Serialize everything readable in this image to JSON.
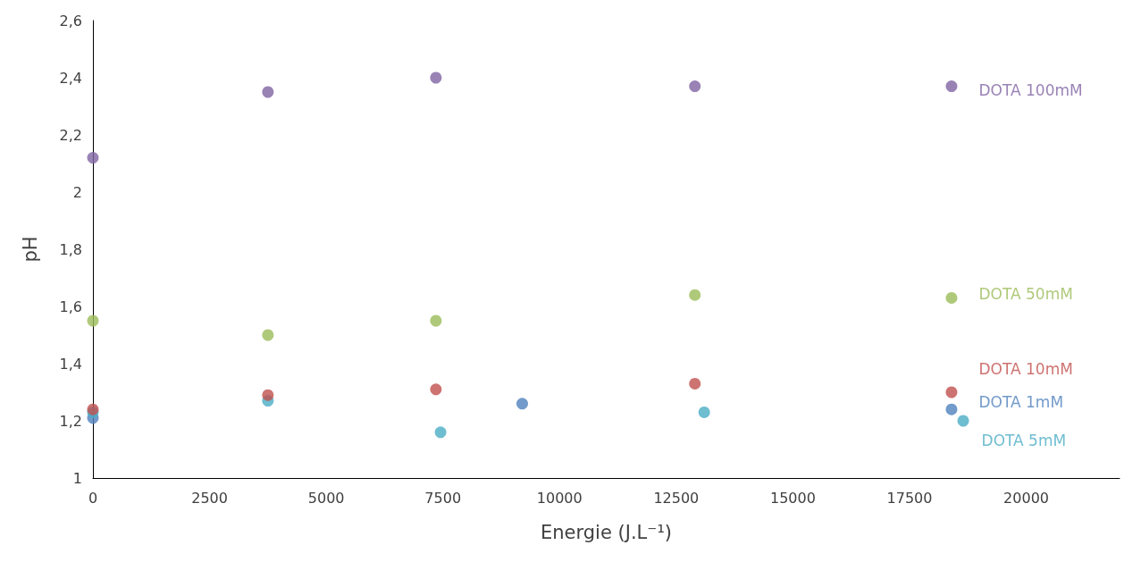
{
  "chart_data": {
    "type": "scatter",
    "xlabel": "Energie (J.L⁻¹)",
    "ylabel": "pH",
    "xlim": [
      0,
      22000
    ],
    "xticks": [
      0,
      2500,
      5000,
      7500,
      10000,
      12500,
      15000,
      17500,
      20000
    ],
    "ylim": [
      1,
      2.6
    ],
    "yticks": [
      1,
      {
        "value": 1.2,
        "label": "1,2"
      },
      {
        "value": 1.4,
        "label": "1,4"
      },
      {
        "value": 1.6,
        "label": "1,6"
      },
      {
        "value": 1.8,
        "label": "1,8"
      },
      2,
      {
        "value": 2.2,
        "label": "2,2"
      },
      {
        "value": 2.4,
        "label": "2,4"
      },
      {
        "value": 2.6,
        "label": "2,6"
      }
    ],
    "grid": false,
    "legend": false,
    "marker": "circle",
    "series": [
      {
        "name": "DOTA 100mM",
        "color": "#8064a2",
        "x": [
          0,
          3750,
          7350,
          12900,
          18400
        ],
        "values": [
          2.12,
          2.35,
          2.4,
          2.37,
          2.37
        ]
      },
      {
        "name": "DOTA 50mM",
        "color": "#9bbb59",
        "x": [
          0,
          3750,
          7350,
          12900,
          18400
        ],
        "values": [
          1.55,
          1.5,
          1.55,
          1.64,
          1.63
        ]
      },
      {
        "name": "DOTA 10mM",
        "color": "#c0504d",
        "x": [
          0,
          3750,
          7350,
          12900,
          18400
        ],
        "values": [
          1.24,
          1.29,
          1.31,
          1.33,
          1.3
        ]
      },
      {
        "name": "DOTA 1mM",
        "color": "#4f81bd",
        "x": [
          0,
          9200,
          18400
        ],
        "values": [
          1.21,
          1.26,
          1.24
        ]
      },
      {
        "name": "DOTA 5mM",
        "color": "#4bacc6",
        "x": [
          0,
          3750,
          7450,
          13100,
          18650
        ],
        "values": [
          1.23,
          1.27,
          1.16,
          1.23,
          1.2
        ]
      }
    ]
  }
}
